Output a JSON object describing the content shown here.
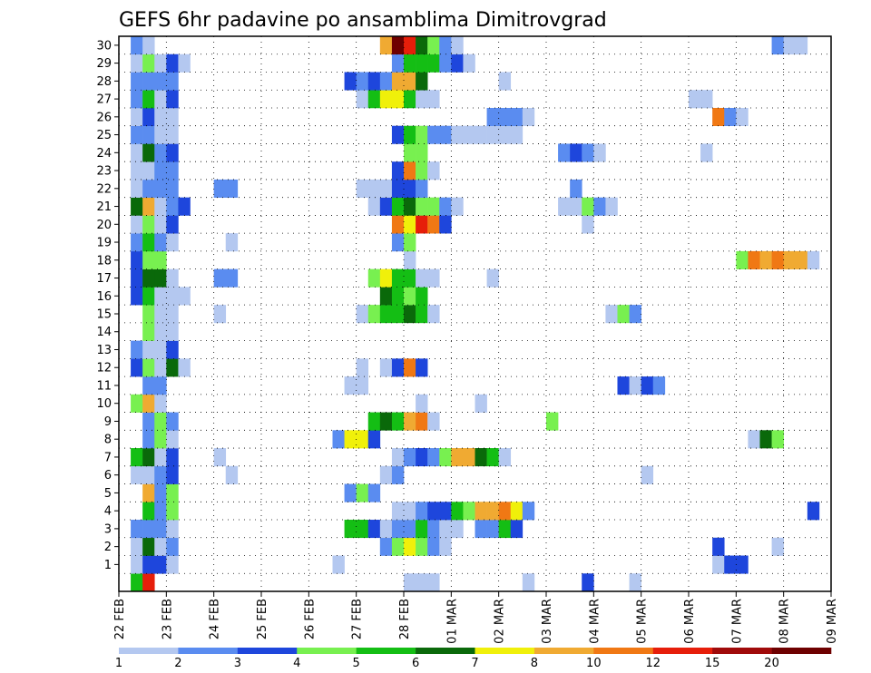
{
  "chart_data": {
    "type": "heatmap",
    "title": "GEFS 6hr padavine po ansamblima Dimitrovgrad",
    "xlabel": "",
    "ylabel": "",
    "x_ticks": [
      "22 FEB",
      "23 FEB",
      "24 FEB",
      "25 FEB",
      "26 FEB",
      "27 FEB",
      "28 FEB",
      "01 MAR",
      "02 MAR",
      "03 MAR",
      "04 MAR",
      "05 MAR",
      "06 MAR",
      "07 MAR",
      "08 MAR",
      "09 MAR"
    ],
    "steps_per_day": 4,
    "n_steps": 60,
    "members": [
      0,
      1,
      2,
      3,
      4,
      5,
      6,
      7,
      8,
      9,
      10,
      11,
      12,
      13,
      14,
      15,
      16,
      17,
      18,
      19,
      20,
      21,
      22,
      23,
      24,
      25,
      26,
      27,
      28,
      29,
      30
    ],
    "y_tick_labels": [
      "1",
      "2",
      "3",
      "4",
      "5",
      "6",
      "7",
      "8",
      "9",
      "10",
      "11",
      "12",
      "13",
      "14",
      "15",
      "16",
      "17",
      "18",
      "19",
      "20",
      "21",
      "22",
      "23",
      "24",
      "25",
      "26",
      "27",
      "28",
      "29",
      "30"
    ],
    "grid": true,
    "colorbar": {
      "levels": [
        "1",
        "2",
        "3",
        "4",
        "5",
        "6",
        "7",
        "8",
        "10",
        "12",
        "15",
        "20"
      ],
      "colors": [
        "#b4c8f0",
        "#5a8cf0",
        "#1e46dc",
        "#78f050",
        "#14be14",
        "#0a690a",
        "#f0f00a",
        "#f0aa32",
        "#f07814",
        "#e61e0a",
        "#a00a0a",
        "#6e0000"
      ]
    },
    "units": "class index (0=1-2,1=2-3,2=3-4,3=4-5,4=5-6,5=6-7,6=7-8,7=8-10,8=10-12,9=12-15,10=15-20,11=20+)",
    "cells": {
      "0": [
        [
          1,
          4
        ],
        [
          2,
          9
        ],
        [
          24,
          0
        ],
        [
          25,
          0
        ],
        [
          26,
          0
        ],
        [
          34,
          0
        ],
        [
          39,
          2
        ],
        [
          43,
          0
        ]
      ],
      "1": [
        [
          1,
          0
        ],
        [
          2,
          2
        ],
        [
          3,
          2
        ],
        [
          4,
          0
        ],
        [
          18,
          0
        ],
        [
          50,
          0
        ],
        [
          51,
          2
        ],
        [
          52,
          2
        ]
      ],
      "2": [
        [
          1,
          0
        ],
        [
          2,
          5
        ],
        [
          3,
          0
        ],
        [
          4,
          1
        ],
        [
          22,
          1
        ],
        [
          23,
          3
        ],
        [
          24,
          6
        ],
        [
          25,
          3
        ],
        [
          26,
          1
        ],
        [
          27,
          0
        ],
        [
          50,
          2
        ],
        [
          55,
          0
        ]
      ],
      "3": [
        [
          1,
          1
        ],
        [
          2,
          1
        ],
        [
          3,
          1
        ],
        [
          4,
          0
        ],
        [
          19,
          4
        ],
        [
          20,
          4
        ],
        [
          21,
          2
        ],
        [
          22,
          0
        ],
        [
          23,
          1
        ],
        [
          24,
          1
        ],
        [
          25,
          4
        ],
        [
          26,
          1
        ],
        [
          27,
          0
        ],
        [
          28,
          0
        ],
        [
          30,
          1
        ],
        [
          31,
          1
        ],
        [
          32,
          4
        ],
        [
          33,
          2
        ]
      ],
      "4": [
        [
          2,
          4
        ],
        [
          3,
          1
        ],
        [
          4,
          3
        ],
        [
          23,
          0
        ],
        [
          24,
          0
        ],
        [
          25,
          1
        ],
        [
          26,
          2
        ],
        [
          27,
          2
        ],
        [
          28,
          4
        ],
        [
          29,
          3
        ],
        [
          30,
          7
        ],
        [
          31,
          7
        ],
        [
          32,
          8
        ],
        [
          33,
          6
        ],
        [
          34,
          1
        ],
        [
          58,
          2
        ]
      ],
      "5": [
        [
          2,
          7
        ],
        [
          3,
          1
        ],
        [
          4,
          3
        ],
        [
          19,
          1
        ],
        [
          20,
          3
        ],
        [
          21,
          1
        ]
      ],
      "6": [
        [
          1,
          0
        ],
        [
          2,
          0
        ],
        [
          3,
          1
        ],
        [
          4,
          2
        ],
        [
          9,
          0
        ],
        [
          22,
          0
        ],
        [
          23,
          1
        ],
        [
          44,
          0
        ]
      ],
      "7": [
        [
          1,
          4
        ],
        [
          2,
          5
        ],
        [
          3,
          0
        ],
        [
          4,
          2
        ],
        [
          8,
          0
        ],
        [
          23,
          0
        ],
        [
          24,
          1
        ],
        [
          25,
          2
        ],
        [
          26,
          1
        ],
        [
          27,
          3
        ],
        [
          28,
          7
        ],
        [
          29,
          7
        ],
        [
          30,
          5
        ],
        [
          31,
          4
        ],
        [
          32,
          0
        ]
      ],
      "8": [
        [
          2,
          1
        ],
        [
          3,
          3
        ],
        [
          4,
          0
        ],
        [
          18,
          1
        ],
        [
          19,
          6
        ],
        [
          20,
          6
        ],
        [
          21,
          2
        ],
        [
          53,
          0
        ],
        [
          54,
          5
        ],
        [
          55,
          3
        ]
      ],
      "9": [
        [
          2,
          1
        ],
        [
          3,
          3
        ],
        [
          4,
          1
        ],
        [
          21,
          4
        ],
        [
          22,
          5
        ],
        [
          23,
          4
        ],
        [
          24,
          7
        ],
        [
          25,
          8
        ],
        [
          26,
          0
        ],
        [
          36,
          3
        ]
      ],
      "10": [
        [
          1,
          3
        ],
        [
          2,
          7
        ],
        [
          3,
          0
        ],
        [
          25,
          0
        ],
        [
          30,
          0
        ]
      ],
      "11": [
        [
          2,
          1
        ],
        [
          3,
          1
        ],
        [
          19,
          0
        ],
        [
          20,
          0
        ],
        [
          42,
          2
        ],
        [
          43,
          0
        ],
        [
          44,
          2
        ],
        [
          45,
          1
        ]
      ],
      "12": [
        [
          1,
          2
        ],
        [
          2,
          3
        ],
        [
          3,
          0
        ],
        [
          4,
          5
        ],
        [
          5,
          0
        ],
        [
          20,
          0
        ],
        [
          22,
          0
        ],
        [
          23,
          2
        ],
        [
          24,
          8
        ],
        [
          25,
          2
        ]
      ],
      "13": [
        [
          1,
          1
        ],
        [
          2,
          0
        ],
        [
          3,
          0
        ],
        [
          4,
          2
        ]
      ],
      "14": [
        [
          2,
          3
        ],
        [
          3,
          0
        ],
        [
          4,
          0
        ]
      ],
      "15": [
        [
          2,
          3
        ],
        [
          3,
          0
        ],
        [
          4,
          0
        ],
        [
          8,
          0
        ],
        [
          20,
          0
        ],
        [
          21,
          3
        ],
        [
          22,
          4
        ],
        [
          23,
          4
        ],
        [
          24,
          5
        ],
        [
          25,
          4
        ],
        [
          26,
          0
        ],
        [
          41,
          0
        ],
        [
          42,
          3
        ],
        [
          43,
          1
        ]
      ],
      "16": [
        [
          1,
          2
        ],
        [
          2,
          4
        ],
        [
          3,
          0
        ],
        [
          4,
          0
        ],
        [
          5,
          0
        ],
        [
          22,
          5
        ],
        [
          23,
          4
        ],
        [
          24,
          3
        ],
        [
          25,
          4
        ]
      ],
      "17": [
        [
          1,
          2
        ],
        [
          2,
          5
        ],
        [
          3,
          5
        ],
        [
          4,
          0
        ],
        [
          8,
          1
        ],
        [
          9,
          1
        ],
        [
          21,
          3
        ],
        [
          22,
          6
        ],
        [
          23,
          4
        ],
        [
          24,
          4
        ],
        [
          25,
          0
        ],
        [
          26,
          0
        ],
        [
          31,
          0
        ]
      ],
      "18": [
        [
          1,
          2
        ],
        [
          2,
          3
        ],
        [
          3,
          3
        ],
        [
          24,
          0
        ],
        [
          52,
          3
        ],
        [
          53,
          8
        ],
        [
          54,
          7
        ],
        [
          55,
          8
        ],
        [
          56,
          7
        ],
        [
          57,
          7
        ],
        [
          58,
          0
        ]
      ],
      "19": [
        [
          1,
          1
        ],
        [
          2,
          4
        ],
        [
          3,
          1
        ],
        [
          4,
          0
        ],
        [
          9,
          0
        ],
        [
          23,
          1
        ],
        [
          24,
          3
        ]
      ],
      "20": [
        [
          1,
          0
        ],
        [
          2,
          3
        ],
        [
          3,
          0
        ],
        [
          4,
          2
        ],
        [
          23,
          8
        ],
        [
          24,
          6
        ],
        [
          25,
          9
        ],
        [
          26,
          8
        ],
        [
          27,
          2
        ],
        [
          39,
          0
        ]
      ],
      "21": [
        [
          1,
          5
        ],
        [
          2,
          7
        ],
        [
          3,
          0
        ],
        [
          4,
          1
        ],
        [
          5,
          2
        ],
        [
          21,
          0
        ],
        [
          22,
          2
        ],
        [
          23,
          4
        ],
        [
          24,
          5
        ],
        [
          25,
          3
        ],
        [
          26,
          3
        ],
        [
          27,
          1
        ],
        [
          28,
          0
        ],
        [
          37,
          0
        ],
        [
          38,
          0
        ],
        [
          39,
          3
        ],
        [
          40,
          1
        ],
        [
          41,
          0
        ]
      ],
      "22": [
        [
          1,
          0
        ],
        [
          2,
          1
        ],
        [
          3,
          1
        ],
        [
          4,
          1
        ],
        [
          8,
          1
        ],
        [
          9,
          1
        ],
        [
          20,
          0
        ],
        [
          21,
          0
        ],
        [
          22,
          0
        ],
        [
          23,
          2
        ],
        [
          24,
          2
        ],
        [
          25,
          1
        ],
        [
          38,
          1
        ]
      ],
      "23": [
        [
          1,
          0
        ],
        [
          2,
          0
        ],
        [
          3,
          1
        ],
        [
          4,
          1
        ],
        [
          23,
          2
        ],
        [
          24,
          8
        ],
        [
          25,
          3
        ],
        [
          26,
          0
        ]
      ],
      "24": [
        [
          1,
          0
        ],
        [
          2,
          5
        ],
        [
          3,
          1
        ],
        [
          4,
          2
        ],
        [
          24,
          3
        ],
        [
          25,
          3
        ],
        [
          37,
          1
        ],
        [
          38,
          2
        ],
        [
          39,
          1
        ],
        [
          40,
          0
        ],
        [
          49,
          0
        ]
      ],
      "25": [
        [
          1,
          1
        ],
        [
          2,
          1
        ],
        [
          3,
          0
        ],
        [
          4,
          0
        ],
        [
          23,
          2
        ],
        [
          24,
          4
        ],
        [
          25,
          3
        ],
        [
          26,
          1
        ],
        [
          27,
          1
        ],
        [
          28,
          0
        ],
        [
          29,
          0
        ],
        [
          30,
          0
        ],
        [
          31,
          0
        ],
        [
          32,
          0
        ],
        [
          33,
          0
        ]
      ],
      "26": [
        [
          1,
          0
        ],
        [
          2,
          2
        ],
        [
          3,
          0
        ],
        [
          4,
          0
        ],
        [
          31,
          1
        ],
        [
          32,
          1
        ],
        [
          33,
          1
        ],
        [
          34,
          0
        ],
        [
          50,
          8
        ],
        [
          51,
          1
        ],
        [
          52,
          0
        ]
      ],
      "27": [
        [
          1,
          1
        ],
        [
          2,
          4
        ],
        [
          3,
          0
        ],
        [
          4,
          2
        ],
        [
          20,
          0
        ],
        [
          21,
          4
        ],
        [
          22,
          6
        ],
        [
          23,
          6
        ],
        [
          24,
          4
        ],
        [
          25,
          0
        ],
        [
          26,
          0
        ],
        [
          48,
          0
        ],
        [
          49,
          0
        ]
      ],
      "28": [
        [
          1,
          1
        ],
        [
          2,
          1
        ],
        [
          3,
          1
        ],
        [
          4,
          1
        ],
        [
          19,
          2
        ],
        [
          20,
          1
        ],
        [
          21,
          2
        ],
        [
          22,
          1
        ],
        [
          23,
          7
        ],
        [
          24,
          7
        ],
        [
          25,
          5
        ],
        [
          32,
          0
        ]
      ],
      "29": [
        [
          1,
          0
        ],
        [
          2,
          3
        ],
        [
          3,
          0
        ],
        [
          4,
          2
        ],
        [
          5,
          0
        ],
        [
          23,
          1
        ],
        [
          24,
          4
        ],
        [
          25,
          4
        ],
        [
          26,
          4
        ],
        [
          27,
          1
        ],
        [
          28,
          2
        ],
        [
          29,
          0
        ]
      ],
      "30": [
        [
          1,
          1
        ],
        [
          2,
          0
        ],
        [
          22,
          7
        ],
        [
          23,
          11
        ],
        [
          24,
          9
        ],
        [
          25,
          5
        ],
        [
          26,
          3
        ],
        [
          27,
          1
        ],
        [
          28,
          0
        ],
        [
          55,
          1
        ],
        [
          56,
          0
        ],
        [
          57,
          0
        ]
      ]
    }
  }
}
